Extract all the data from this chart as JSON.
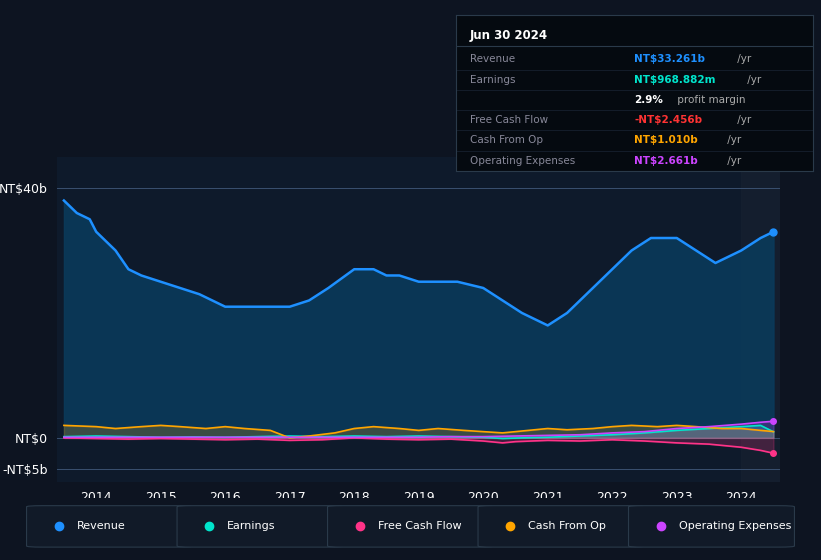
{
  "bg_color": "#0d1421",
  "plot_bg_color": "#0e1a2b",
  "title_date": "Jun 30 2024",
  "info_rows": [
    {
      "label": "Revenue",
      "value": "NT$33.261b",
      "suffix": " /yr",
      "color": "#1e90ff",
      "bold_value": true
    },
    {
      "label": "Earnings",
      "value": "NT$968.882m",
      "suffix": " /yr",
      "color": "#00e5cc",
      "bold_value": true
    },
    {
      "label": "",
      "value": "2.9%",
      "suffix": " profit margin",
      "color": "#ffffff",
      "bold_value": true
    },
    {
      "label": "Free Cash Flow",
      "value": "-NT$2.456b",
      "suffix": " /yr",
      "color": "#ff3333",
      "bold_value": true
    },
    {
      "label": "Cash From Op",
      "value": "NT$1.010b",
      "suffix": " /yr",
      "color": "#ffa500",
      "bold_value": true
    },
    {
      "label": "Operating Expenses",
      "value": "NT$2.661b",
      "suffix": " /yr",
      "color": "#cc44ff",
      "bold_value": true
    }
  ],
  "revenue": {
    "x": [
      2013.5,
      2013.7,
      2013.9,
      2014.0,
      2014.3,
      2014.5,
      2014.7,
      2015.0,
      2015.3,
      2015.6,
      2016.0,
      2016.3,
      2016.6,
      2017.0,
      2017.3,
      2017.6,
      2018.0,
      2018.3,
      2018.5,
      2018.7,
      2019.0,
      2019.3,
      2019.6,
      2020.0,
      2020.3,
      2020.6,
      2021.0,
      2021.3,
      2021.6,
      2022.0,
      2022.3,
      2022.6,
      2023.0,
      2023.3,
      2023.6,
      2024.0,
      2024.3,
      2024.5
    ],
    "y": [
      38,
      36,
      35,
      33,
      30,
      27,
      26,
      25,
      24,
      23,
      21,
      21,
      21,
      21,
      22,
      24,
      27,
      27,
      26,
      26,
      25,
      25,
      25,
      24,
      22,
      20,
      18,
      20,
      23,
      27,
      30,
      32,
      32,
      30,
      28,
      30,
      32,
      33
    ],
    "color": "#1e90ff",
    "fill_color": "#0a3a5a"
  },
  "earnings": {
    "x": [
      2013.5,
      2014.0,
      2014.5,
      2015.0,
      2015.5,
      2016.0,
      2016.5,
      2017.0,
      2017.5,
      2018.0,
      2018.5,
      2019.0,
      2019.5,
      2020.0,
      2020.3,
      2020.6,
      2021.0,
      2021.5,
      2022.0,
      2022.5,
      2023.0,
      2023.5,
      2024.0,
      2024.3,
      2024.5
    ],
    "y": [
      0.2,
      0.3,
      0.2,
      0.1,
      0.15,
      0.1,
      0.2,
      0.3,
      0.2,
      0.3,
      0.2,
      0.3,
      0.2,
      0.1,
      -0.1,
      0.0,
      0.1,
      0.3,
      0.5,
      0.8,
      1.2,
      1.5,
      1.8,
      2.0,
      0.97
    ],
    "color": "#00e5cc"
  },
  "free_cash_flow": {
    "x": [
      2013.5,
      2014.0,
      2014.5,
      2015.0,
      2015.5,
      2016.0,
      2016.5,
      2017.0,
      2017.5,
      2018.0,
      2018.5,
      2019.0,
      2019.5,
      2020.0,
      2020.3,
      2020.5,
      2021.0,
      2021.5,
      2022.0,
      2022.5,
      2023.0,
      2023.5,
      2024.0,
      2024.3,
      2024.5
    ],
    "y": [
      0.0,
      -0.1,
      -0.2,
      -0.1,
      -0.2,
      -0.3,
      -0.2,
      -0.4,
      -0.3,
      0.0,
      -0.2,
      -0.3,
      -0.2,
      -0.5,
      -0.8,
      -0.6,
      -0.4,
      -0.5,
      -0.3,
      -0.5,
      -0.8,
      -1.0,
      -1.5,
      -2.0,
      -2.456
    ],
    "color": "#ff3388"
  },
  "cash_from_op": {
    "x": [
      2013.5,
      2014.0,
      2014.3,
      2014.7,
      2015.0,
      2015.3,
      2015.7,
      2016.0,
      2016.3,
      2016.7,
      2017.0,
      2017.3,
      2017.7,
      2018.0,
      2018.3,
      2018.7,
      2019.0,
      2019.3,
      2019.7,
      2020.0,
      2020.3,
      2020.7,
      2021.0,
      2021.3,
      2021.7,
      2022.0,
      2022.3,
      2022.7,
      2023.0,
      2023.3,
      2023.7,
      2024.0,
      2024.3,
      2024.5
    ],
    "y": [
      2.0,
      1.8,
      1.5,
      1.8,
      2.0,
      1.8,
      1.5,
      1.8,
      1.5,
      1.2,
      0.0,
      0.3,
      0.8,
      1.5,
      1.8,
      1.5,
      1.2,
      1.5,
      1.2,
      1.0,
      0.8,
      1.2,
      1.5,
      1.3,
      1.5,
      1.8,
      2.0,
      1.8,
      2.0,
      1.8,
      1.5,
      1.5,
      1.2,
      1.01
    ],
    "color": "#ffa500"
  },
  "operating_expenses": {
    "x": [
      2013.5,
      2014.0,
      2014.5,
      2015.0,
      2015.5,
      2016.0,
      2016.5,
      2017.0,
      2017.5,
      2018.0,
      2018.5,
      2019.0,
      2019.5,
      2020.0,
      2020.5,
      2021.0,
      2021.5,
      2022.0,
      2022.5,
      2023.0,
      2023.5,
      2024.0,
      2024.3,
      2024.5
    ],
    "y": [
      0.1,
      0.1,
      0.1,
      0.1,
      0.1,
      0.1,
      0.1,
      0.1,
      0.1,
      0.1,
      0.1,
      0.1,
      0.2,
      0.2,
      0.3,
      0.4,
      0.5,
      0.8,
      1.0,
      1.5,
      1.8,
      2.2,
      2.5,
      2.661
    ],
    "color": "#cc44ff"
  },
  "legend": [
    {
      "label": "Revenue",
      "color": "#1e90ff"
    },
    {
      "label": "Earnings",
      "color": "#00e5cc"
    },
    {
      "label": "Free Cash Flow",
      "color": "#ff3388"
    },
    {
      "label": "Cash From Op",
      "color": "#ffa500"
    },
    {
      "label": "Operating Expenses",
      "color": "#cc44ff"
    }
  ],
  "shaded_region_start": 2024.0,
  "xlim": [
    2013.4,
    2024.6
  ],
  "ylim": [
    -7,
    45
  ],
  "ytick_values": [
    40,
    0,
    -5
  ],
  "ytick_labels": [
    "NT$40b",
    "NT$0",
    "-NT$5b"
  ],
  "xtick_values": [
    2014,
    2015,
    2016,
    2017,
    2018,
    2019,
    2020,
    2021,
    2022,
    2023,
    2024
  ]
}
